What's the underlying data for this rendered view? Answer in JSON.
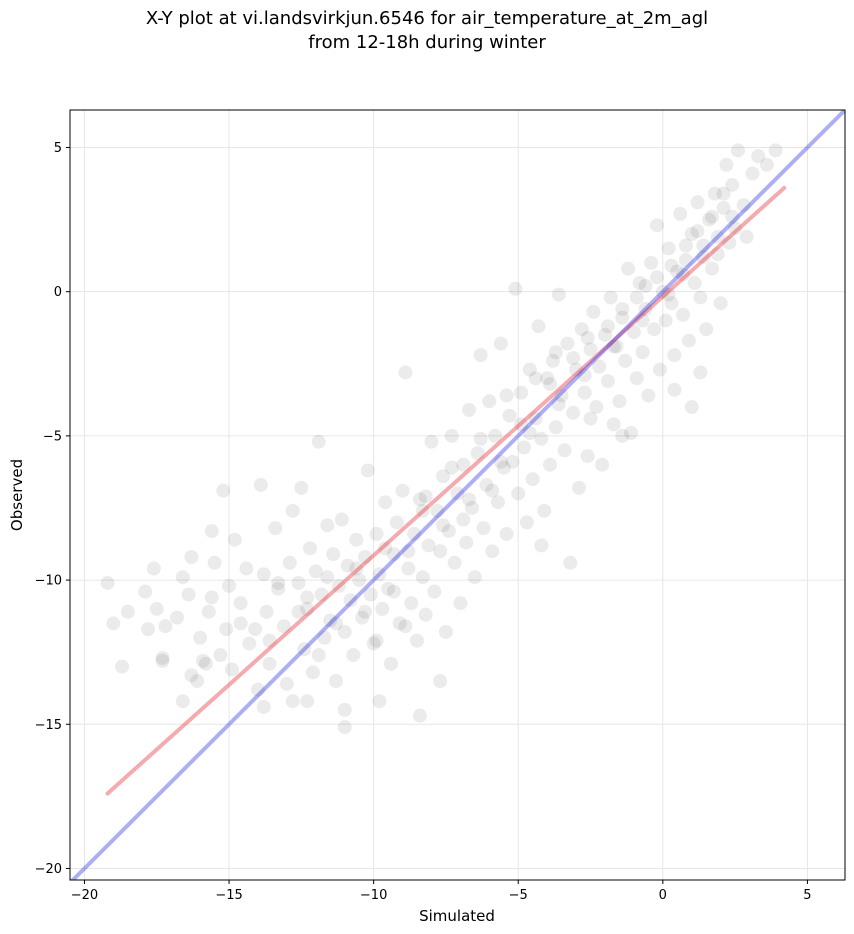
{
  "title_line1": "X-Y plot at vi.landsvirkjun.6546 for air_temperature_at_2m_agl",
  "title_line2": "from 12-18h during winter",
  "chart_data": {
    "type": "scatter",
    "title": "X-Y plot at vi.landsvirkjun.6546 for air_temperature_at_2m_agl\nfrom 12-18h during winter",
    "xlabel": "Simulated",
    "ylabel": "Observed",
    "xlim": [
      -20.5,
      6.3
    ],
    "ylim": [
      -20.4,
      6.3
    ],
    "xticks": [
      -20,
      -15,
      -10,
      -5,
      0,
      5
    ],
    "yticks": [
      -20,
      -15,
      -10,
      -5,
      0,
      5
    ],
    "xtick_labels": [
      "−20",
      "−15",
      "−10",
      "−5",
      "0",
      "5"
    ],
    "ytick_labels": [
      "−20",
      "−15",
      "−10",
      "−5",
      "0",
      "5"
    ],
    "grid": true,
    "point_color": "#000000",
    "point_opacity": 0.08,
    "points": [
      [
        -19.2,
        -10.1
      ],
      [
        -19.0,
        -11.5
      ],
      [
        -18.7,
        -13.0
      ],
      [
        -18.5,
        -11.1
      ],
      [
        -17.9,
        -10.4
      ],
      [
        -17.8,
        -11.7
      ],
      [
        -17.6,
        -9.6
      ],
      [
        -17.5,
        -11.0
      ],
      [
        -17.3,
        -12.7
      ],
      [
        -17.2,
        -11.6
      ],
      [
        -16.8,
        -11.3
      ],
      [
        -16.6,
        -14.2
      ],
      [
        -16.6,
        -9.9
      ],
      [
        -16.4,
        -10.5
      ],
      [
        -16.3,
        -9.2
      ],
      [
        -16.1,
        -13.5
      ],
      [
        -16.0,
        -12.0
      ],
      [
        -15.9,
        -12.8
      ],
      [
        -15.7,
        -11.1
      ],
      [
        -15.6,
        -8.3
      ],
      [
        -15.5,
        -9.4
      ],
      [
        -15.3,
        -12.6
      ],
      [
        -15.2,
        -6.9
      ],
      [
        -15.1,
        -11.7
      ],
      [
        -15.0,
        -10.2
      ],
      [
        -14.9,
        -13.1
      ],
      [
        -14.8,
        -8.6
      ],
      [
        -14.6,
        -10.8
      ],
      [
        -14.4,
        -9.6
      ],
      [
        -14.3,
        -12.2
      ],
      [
        -14.1,
        -11.7
      ],
      [
        -14.0,
        -13.8
      ],
      [
        -13.9,
        -6.7
      ],
      [
        -13.8,
        -9.8
      ],
      [
        -13.7,
        -11.1
      ],
      [
        -13.6,
        -12.9
      ],
      [
        -13.4,
        -8.2
      ],
      [
        -13.3,
        -10.3
      ],
      [
        -13.1,
        -11.6
      ],
      [
        -13.0,
        -13.6
      ],
      [
        -12.9,
        -9.4
      ],
      [
        -12.8,
        -7.6
      ],
      [
        -12.6,
        -10.1
      ],
      [
        -12.5,
        -6.8
      ],
      [
        -12.4,
        -12.4
      ],
      [
        -12.3,
        -11.0
      ],
      [
        -12.2,
        -8.9
      ],
      [
        -12.1,
        -13.2
      ],
      [
        -12.0,
        -9.7
      ],
      [
        -11.9,
        -5.2
      ],
      [
        -11.8,
        -10.5
      ],
      [
        -11.7,
        -12.0
      ],
      [
        -11.6,
        -8.1
      ],
      [
        -11.5,
        -11.4
      ],
      [
        -11.4,
        -9.1
      ],
      [
        -11.3,
        -13.5
      ],
      [
        -11.2,
        -10.2
      ],
      [
        -11.1,
        -7.9
      ],
      [
        -11.0,
        -11.8
      ],
      [
        -10.9,
        -9.5
      ],
      [
        -10.8,
        -10.7
      ],
      [
        -10.7,
        -12.6
      ],
      [
        -10.6,
        -8.6
      ],
      [
        -10.5,
        -10.0
      ],
      [
        -10.4,
        -11.3
      ],
      [
        -10.3,
        -9.2
      ],
      [
        -10.2,
        -6.2
      ],
      [
        -10.1,
        -10.5
      ],
      [
        -10.0,
        -12.2
      ],
      [
        -9.9,
        -8.4
      ],
      [
        -9.8,
        -9.8
      ],
      [
        -9.7,
        -11.0
      ],
      [
        -9.6,
        -7.3
      ],
      [
        -9.5,
        -10.3
      ],
      [
        -9.4,
        -12.9
      ],
      [
        -9.3,
        -9.1
      ],
      [
        -9.2,
        -8.0
      ],
      [
        -9.1,
        -11.5
      ],
      [
        -9.0,
        -6.9
      ],
      [
        -8.9,
        -2.8
      ],
      [
        -8.8,
        -9.6
      ],
      [
        -8.7,
        -10.8
      ],
      [
        -8.6,
        -8.4
      ],
      [
        -8.5,
        -12.1
      ],
      [
        -8.4,
        -7.2
      ],
      [
        -8.3,
        -9.9
      ],
      [
        -8.2,
        -11.2
      ],
      [
        -8.1,
        -8.8
      ],
      [
        -8.0,
        -5.2
      ],
      [
        -7.9,
        -10.4
      ],
      [
        -7.8,
        -7.6
      ],
      [
        -7.7,
        -9.0
      ],
      [
        -7.6,
        -6.4
      ],
      [
        -7.5,
        -11.8
      ],
      [
        -7.4,
        -8.3
      ],
      [
        -7.3,
        -5.0
      ],
      [
        -7.2,
        -9.4
      ],
      [
        -7.1,
        -7.0
      ],
      [
        -7.0,
        -10.8
      ],
      [
        -6.9,
        -6.0
      ],
      [
        -6.8,
        -8.7
      ],
      [
        -6.7,
        -4.1
      ],
      [
        -6.6,
        -7.5
      ],
      [
        -6.5,
        -9.9
      ],
      [
        -6.4,
        -5.6
      ],
      [
        -6.3,
        -2.2
      ],
      [
        -6.2,
        -8.2
      ],
      [
        -6.1,
        -6.7
      ],
      [
        -6.0,
        -3.8
      ],
      [
        -5.9,
        -9.0
      ],
      [
        -5.8,
        -5.0
      ],
      [
        -5.7,
        -7.3
      ],
      [
        -5.6,
        -1.8
      ],
      [
        -5.5,
        -6.1
      ],
      [
        -5.4,
        -8.4
      ],
      [
        -5.3,
        -4.3
      ],
      [
        -5.2,
        -5.9
      ],
      [
        -5.1,
        0.1
      ],
      [
        -5.0,
        -7.0
      ],
      [
        -4.9,
        -3.5
      ],
      [
        -4.8,
        -5.4
      ],
      [
        -4.7,
        -8.0
      ],
      [
        -4.6,
        -2.7
      ],
      [
        -4.5,
        -6.5
      ],
      [
        -4.4,
        -4.4
      ],
      [
        -4.3,
        -1.2
      ],
      [
        -4.2,
        -5.1
      ],
      [
        -4.1,
        -7.6
      ],
      [
        -4.0,
        -3.0
      ],
      [
        -3.9,
        -6.0
      ],
      [
        -3.8,
        -2.4
      ],
      [
        -3.7,
        -4.7
      ],
      [
        -3.6,
        -0.1
      ],
      [
        -3.5,
        -3.6
      ],
      [
        -3.4,
        -5.5
      ],
      [
        -3.3,
        -1.8
      ],
      [
        -3.2,
        -9.4
      ],
      [
        -3.1,
        -4.2
      ],
      [
        -3.0,
        -2.7
      ],
      [
        -2.9,
        -6.8
      ],
      [
        -2.8,
        -1.3
      ],
      [
        -2.7,
        -3.5
      ],
      [
        -2.6,
        -5.7
      ],
      [
        -2.5,
        -2.0
      ],
      [
        -2.4,
        -0.7
      ],
      [
        -2.3,
        -4.0
      ],
      [
        -2.2,
        -2.6
      ],
      [
        -2.1,
        -6.0
      ],
      [
        -2.0,
        -1.5
      ],
      [
        -1.9,
        -3.1
      ],
      [
        -1.8,
        -0.2
      ],
      [
        -1.7,
        -4.6
      ],
      [
        -1.6,
        -1.9
      ],
      [
        -1.5,
        -3.8
      ],
      [
        -1.4,
        -0.9
      ],
      [
        -1.3,
        -2.4
      ],
      [
        -1.2,
        0.8
      ],
      [
        -1.1,
        -4.9
      ],
      [
        -1.0,
        -1.4
      ],
      [
        -0.9,
        -3.0
      ],
      [
        -0.8,
        0.3
      ],
      [
        -0.7,
        -2.1
      ],
      [
        -0.6,
        -0.6
      ],
      [
        -0.5,
        -3.6
      ],
      [
        -0.4,
        1.0
      ],
      [
        -0.3,
        -1.3
      ],
      [
        -0.2,
        2.3
      ],
      [
        -0.1,
        -2.7
      ],
      [
        0.0,
        0.0
      ],
      [
        0.1,
        -1.0
      ],
      [
        0.2,
        1.5
      ],
      [
        0.3,
        -0.4
      ],
      [
        0.4,
        -2.2
      ],
      [
        0.5,
        0.7
      ],
      [
        0.6,
        2.7
      ],
      [
        0.7,
        -0.8
      ],
      [
        0.8,
        1.1
      ],
      [
        0.9,
        -1.7
      ],
      [
        1.0,
        2.0
      ],
      [
        1.1,
        0.3
      ],
      [
        1.2,
        3.1
      ],
      [
        1.3,
        -0.2
      ],
      [
        1.4,
        1.6
      ],
      [
        1.5,
        -1.3
      ],
      [
        1.6,
        2.5
      ],
      [
        1.7,
        0.8
      ],
      [
        1.8,
        3.4
      ],
      [
        1.9,
        1.3
      ],
      [
        2.0,
        -0.4
      ],
      [
        2.1,
        2.9
      ],
      [
        2.2,
        4.4
      ],
      [
        2.3,
        1.7
      ],
      [
        2.4,
        3.7
      ],
      [
        2.5,
        2.2
      ],
      [
        2.6,
        4.9
      ],
      [
        2.8,
        3.0
      ],
      [
        2.9,
        1.9
      ],
      [
        3.1,
        4.1
      ],
      [
        3.3,
        4.7
      ],
      [
        3.6,
        4.4
      ],
      [
        3.9,
        4.9
      ],
      [
        1.0,
        -4.0
      ],
      [
        1.3,
        -2.8
      ],
      [
        0.4,
        -3.4
      ],
      [
        -1.4,
        -5.0
      ],
      [
        -2.5,
        -4.4
      ],
      [
        -4.2,
        -8.8
      ],
      [
        -7.7,
        -13.5
      ],
      [
        -8.4,
        -14.7
      ],
      [
        -9.8,
        -14.2
      ],
      [
        -11.0,
        -14.5
      ],
      [
        -11.0,
        -15.1
      ],
      [
        -12.3,
        -14.2
      ],
      [
        -12.8,
        -14.2
      ],
      [
        -13.8,
        -14.4
      ],
      [
        -16.3,
        -13.3
      ],
      [
        -17.3,
        -12.8
      ],
      [
        -15.8,
        -12.9
      ],
      [
        -8.2,
        -7.1
      ],
      [
        -6.9,
        -7.9
      ],
      [
        -5.9,
        -6.9
      ],
      [
        -4.9,
        -4.6
      ],
      [
        -3.9,
        -3.2
      ],
      [
        -3.1,
        -2.3
      ],
      [
        -2.6,
        -1.6
      ],
      [
        -1.9,
        -1.2
      ],
      [
        -1.4,
        -0.6
      ],
      [
        -0.9,
        -0.2
      ],
      [
        -0.6,
        0.2
      ],
      [
        -0.2,
        0.5
      ],
      [
        0.3,
        0.9
      ],
      [
        0.8,
        1.6
      ],
      [
        1.2,
        2.1
      ],
      [
        1.7,
        2.6
      ],
      [
        2.1,
        3.4
      ],
      [
        -9.3,
        -10.4
      ],
      [
        -10.3,
        -11.1
      ],
      [
        -11.3,
        -11.5
      ],
      [
        -12.3,
        -10.6
      ],
      [
        -13.3,
        -10.1
      ],
      [
        -8.8,
        -9.0
      ],
      [
        -7.6,
        -8.1
      ],
      [
        -6.7,
        -7.2
      ],
      [
        -5.6,
        -5.9
      ],
      [
        -4.6,
        -4.9
      ],
      [
        -3.6,
        -3.9
      ],
      [
        -2.7,
        -2.9
      ],
      [
        -1.7,
        -1.9
      ],
      [
        -0.7,
        -1.0
      ],
      [
        0.2,
        -0.1
      ],
      [
        0.7,
        0.6
      ],
      [
        1.4,
        1.2
      ],
      [
        1.9,
        1.9
      ],
      [
        2.4,
        2.6
      ],
      [
        -3.7,
        -2.1
      ],
      [
        -4.4,
        -3.0
      ],
      [
        -5.4,
        -3.6
      ],
      [
        -6.3,
        -5.1
      ],
      [
        -7.3,
        -6.1
      ],
      [
        -8.3,
        -7.6
      ],
      [
        -9.6,
        -8.9
      ],
      [
        -10.6,
        -9.6
      ],
      [
        -11.6,
        -9.9
      ],
      [
        -12.6,
        -11.1
      ],
      [
        -14.6,
        -11.5
      ],
      [
        -15.6,
        -10.6
      ],
      [
        -13.6,
        -12.1
      ],
      [
        -11.9,
        -12.6
      ],
      [
        -9.9,
        -12.1
      ],
      [
        -8.9,
        -11.6
      ]
    ],
    "series": [
      {
        "name": "fit",
        "color": "#e8363e",
        "opacity": 0.42,
        "x": [
          -19.2,
          4.2
        ],
        "y": [
          -17.4,
          3.6
        ]
      },
      {
        "name": "1:1",
        "color": "#2b2bea",
        "opacity": 0.38,
        "x": [
          -20.5,
          6.3
        ],
        "y": [
          -20.5,
          6.3
        ]
      }
    ]
  }
}
